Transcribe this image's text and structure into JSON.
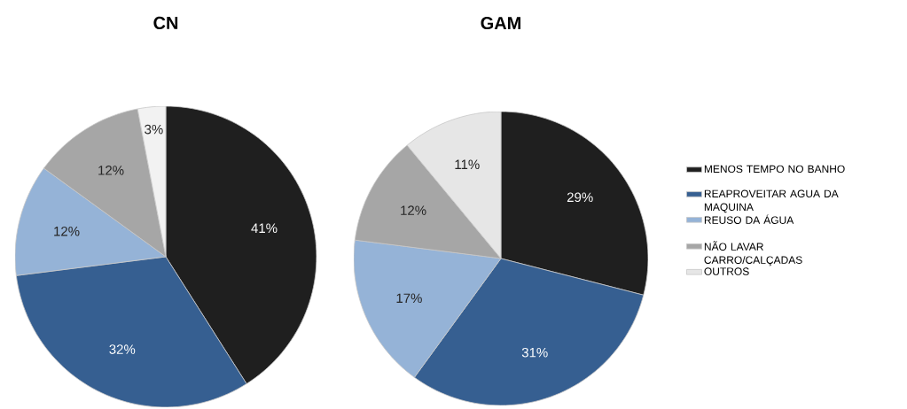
{
  "chart_data": [
    {
      "type": "pie",
      "title": "CN",
      "categories": [
        null,
        null,
        null,
        null,
        null
      ],
      "values": [
        41,
        32,
        12,
        12,
        3
      ],
      "value_labels": [
        "41%",
        "32%",
        "12%",
        "12%",
        "3%"
      ],
      "colors": [
        "#1f1f1f",
        "#365f91",
        "#95b3d7",
        "#a6a6a6",
        "#f2f2f2"
      ]
    },
    {
      "type": "pie",
      "title": "GAM",
      "categories": [
        "MENOS TEMPO NO BANHO",
        "REAPROVEITAR AGUA DA MAQUINA",
        "REUSO DA ÁGUA",
        "NÃO LAVAR CARRO/CALÇADAS",
        "OUTROS"
      ],
      "values": [
        29,
        31,
        17,
        12,
        11
      ],
      "value_labels": [
        "29%",
        "31%",
        "17%",
        "12%",
        "11%"
      ],
      "colors": [
        "#1f1f1f",
        "#365f91",
        "#95b3d7",
        "#a6a6a6",
        "#e6e6e6"
      ],
      "legend": "right"
    }
  ]
}
